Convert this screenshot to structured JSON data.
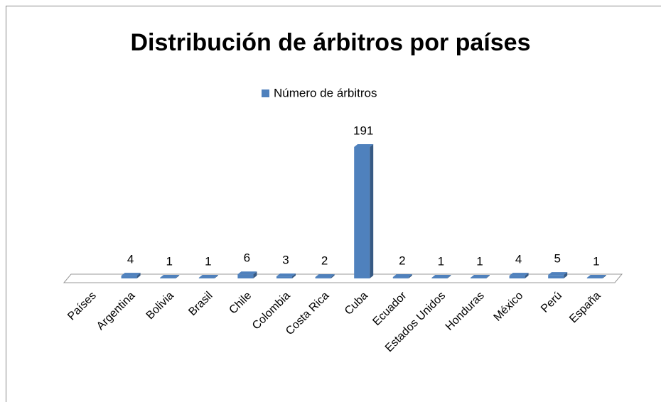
{
  "chart_data": {
    "type": "bar3d",
    "title": "Distribución de árbitros por países",
    "categories": [
      "Países",
      "Argentina",
      "Bolivia",
      "Brasil",
      "Chile",
      "Colombia",
      "Costa Rica",
      "Cuba",
      "Ecuador",
      "Estados Unidos",
      "Honduras",
      "México",
      "Perú",
      "España"
    ],
    "series": [
      {
        "name": "Número de árbitros",
        "color": "#4f81bd",
        "values": [
          null,
          4,
          1,
          1,
          6,
          3,
          2,
          191,
          2,
          1,
          1,
          4,
          5,
          1
        ]
      }
    ]
  }
}
